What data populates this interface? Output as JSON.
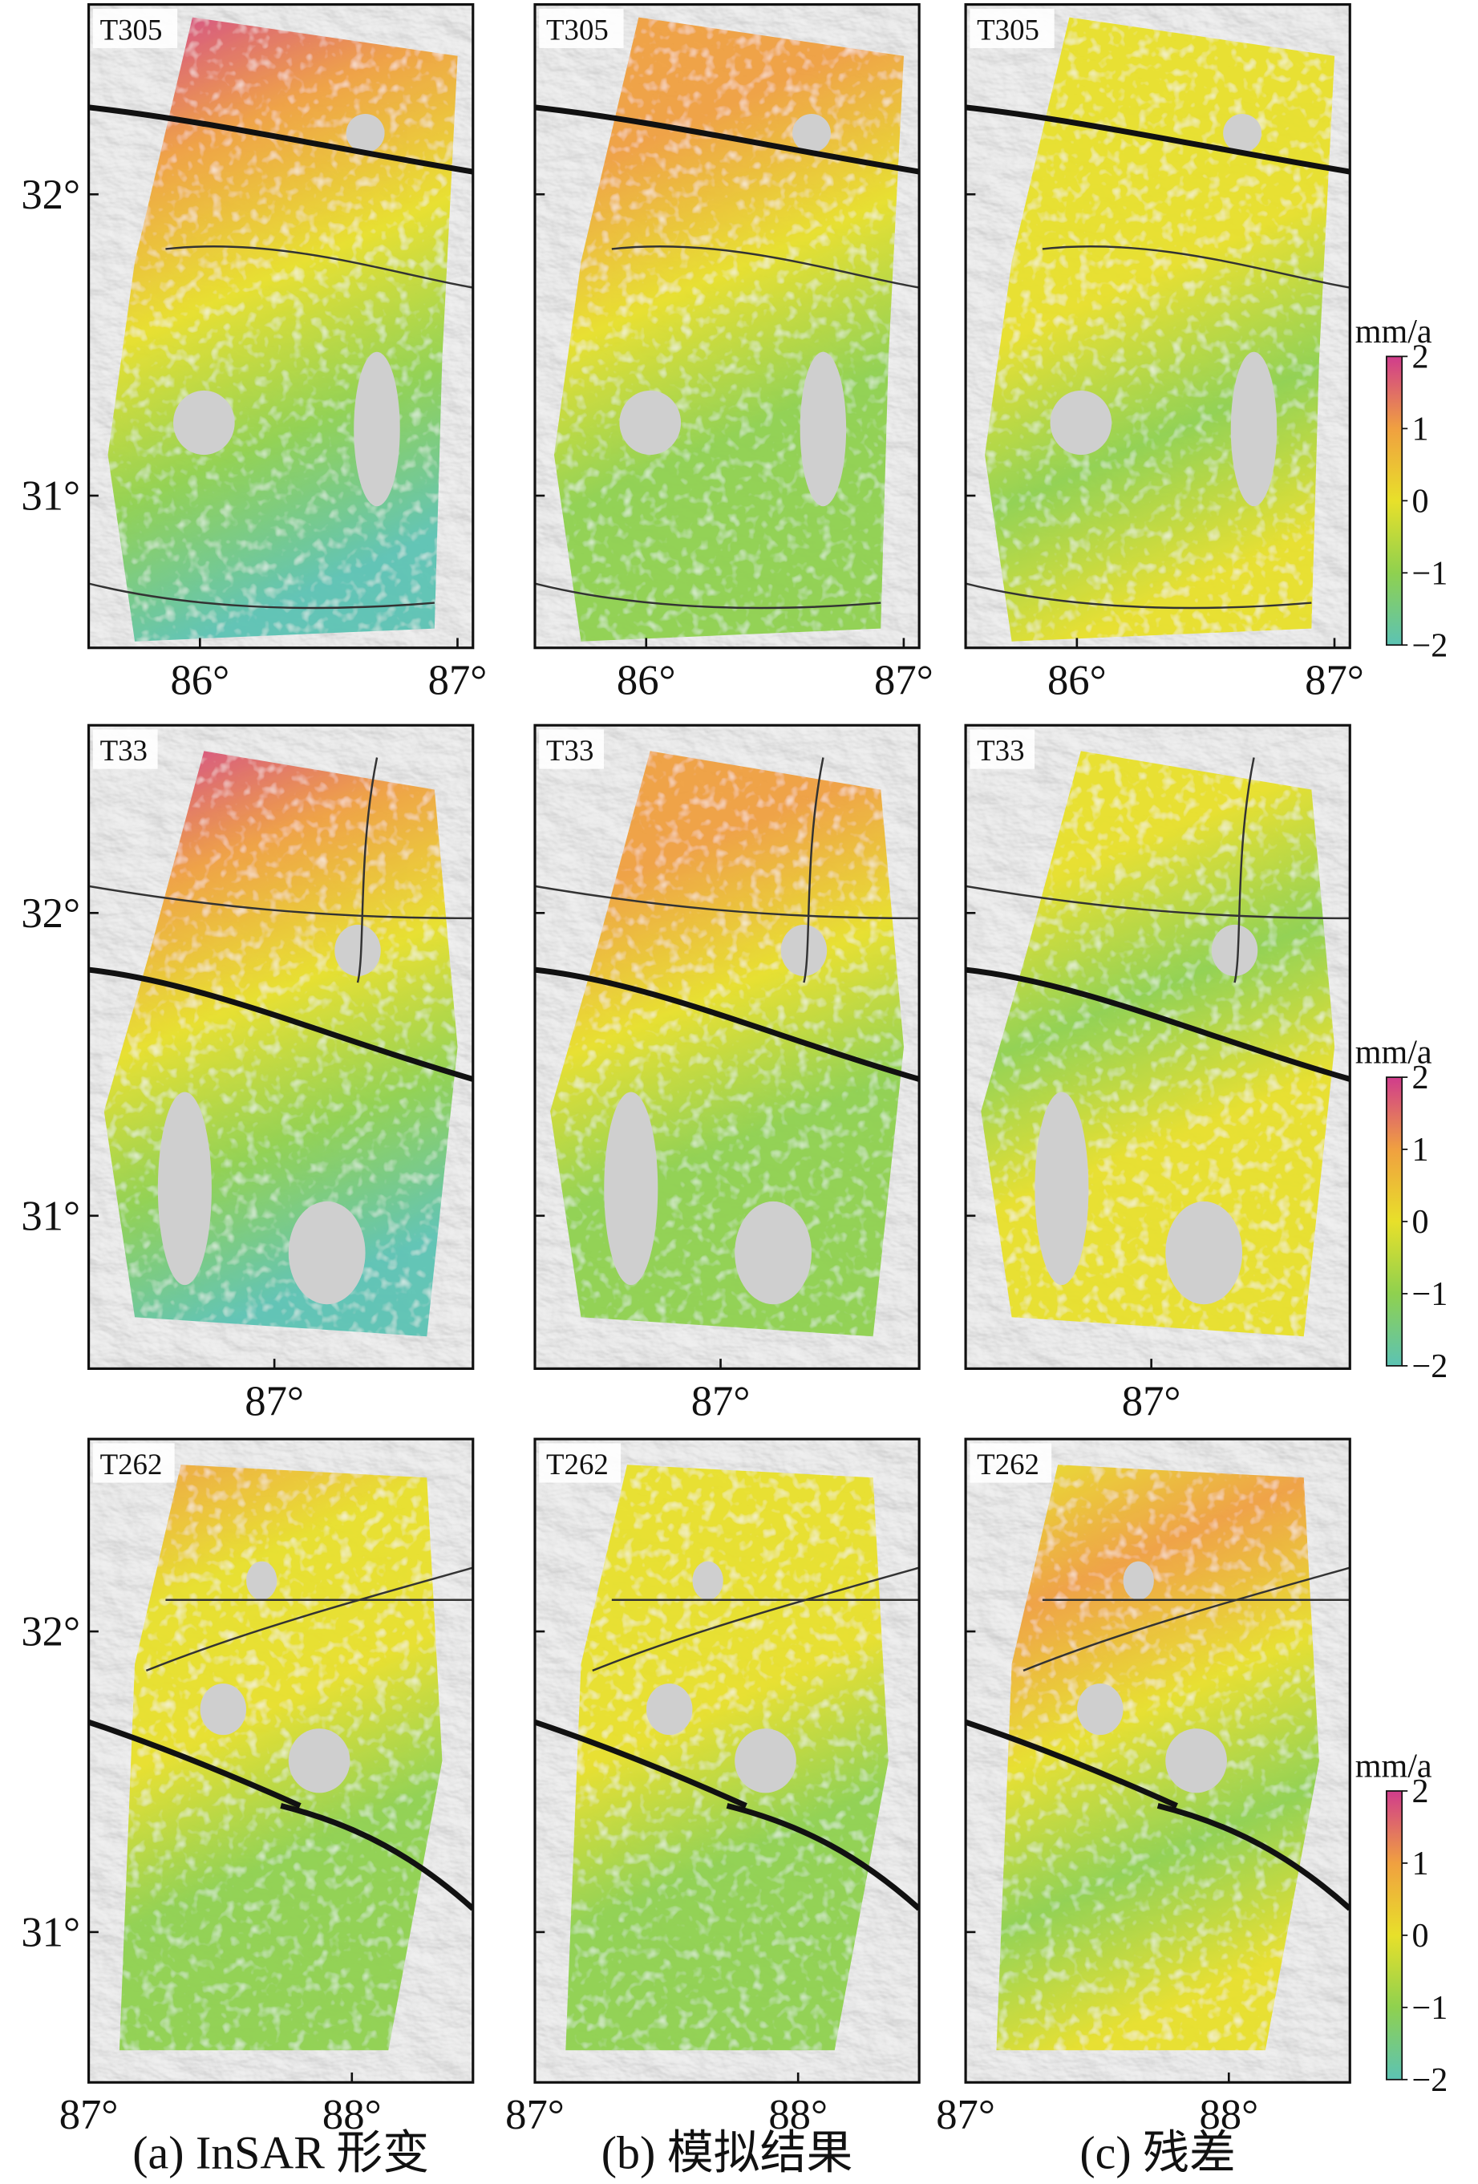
{
  "rows": [
    {
      "track": "T305",
      "ylim": [
        30.495,
        32.63
      ],
      "xlim": [
        85.568,
        87.06
      ],
      "yticks": [
        {
          "value": 32,
          "label": "32°"
        },
        {
          "value": 31,
          "label": "31°"
        }
      ],
      "xticks": [
        {
          "value": 86,
          "label": "86°"
        },
        {
          "value": 87,
          "label": "87°"
        }
      ]
    },
    {
      "track": "T33",
      "ylim": [
        30.495,
        32.62
      ],
      "xlim": [
        86.28,
        87.77
      ],
      "yticks": [
        {
          "value": 32,
          "label": "32°"
        },
        {
          "value": 31,
          "label": "31°"
        }
      ],
      "xticks": [
        {
          "value": 87,
          "label": "87°"
        }
      ]
    },
    {
      "track": "T262",
      "ylim": [
        30.5,
        32.64
      ],
      "xlim": [
        87,
        88.46
      ],
      "yticks": [
        {
          "value": 32,
          "label": "32°"
        },
        {
          "value": 31,
          "label": "31°"
        }
      ],
      "xticks": [
        {
          "value": 87,
          "label": "87°"
        },
        {
          "value": 88,
          "label": "88°"
        }
      ]
    }
  ],
  "columns": [
    {
      "caption": "(a) InSAR 形变"
    },
    {
      "caption": "(b) 模拟结果"
    },
    {
      "caption": "(c) 残差"
    }
  ],
  "colorbar": {
    "unit": "mm/a",
    "lim": [
      -2,
      2
    ],
    "ticks": [
      2,
      1,
      0,
      {
        "value": -1,
        "label": "−1"
      },
      {
        "value": -2,
        "label": "−2"
      }
    ],
    "colors": [
      "#5cc3b4",
      "#8fd14f",
      "#e8e02a",
      "#f0a040",
      "#d03c8c"
    ]
  }
}
